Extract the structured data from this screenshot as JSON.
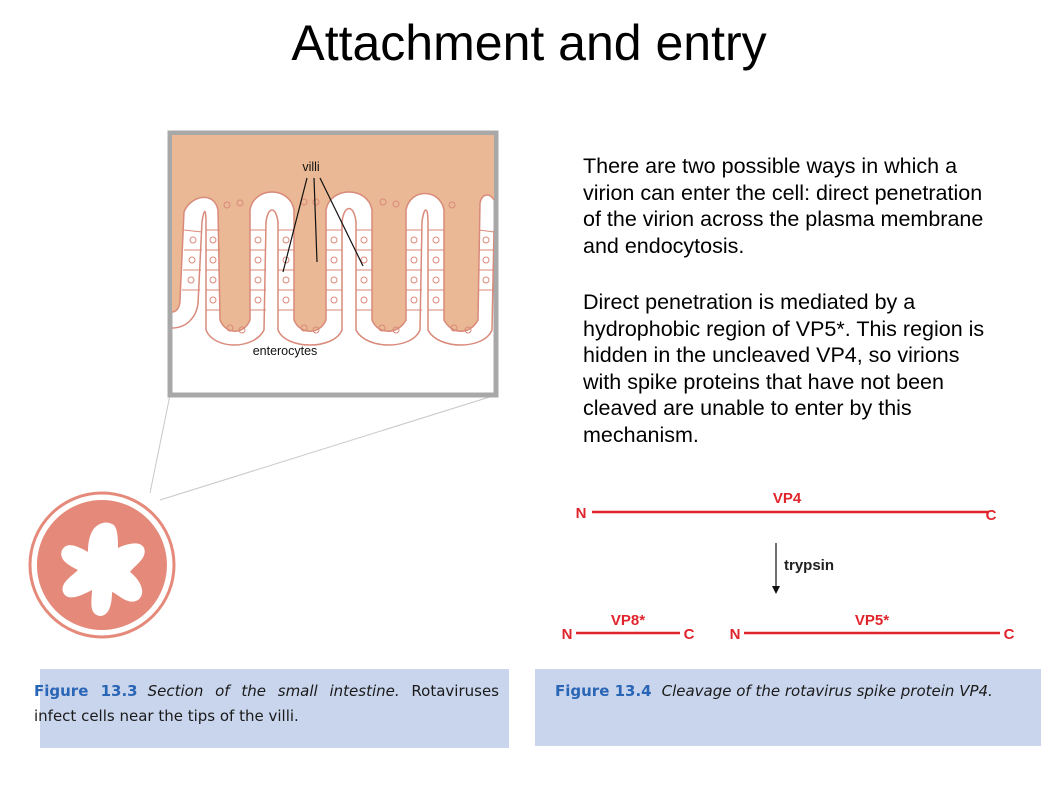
{
  "slide": {
    "title": "Attachment and entry"
  },
  "body": {
    "paragraph1": "There are two possible ways in which a virion can enter the cell: direct penetration of the virion across the plasma membrane and endocytosis.",
    "paragraph2": "Direct penetration is mediated by a hydrophobic region of VP5*. This region is hidden in the uncleaved VP4, so virions with spike proteins that have not been cleaved are unable to enter by this mechanism."
  },
  "figure_13_3": {
    "label_villi": "villi",
    "label_enterocytes": "enterocytes",
    "caption_label": "Figure 13.3",
    "caption_title": "Section of the small intestine.",
    "caption_text": "Rotaviruses infect cells near the tips of the villi."
  },
  "figure_13_4": {
    "vp4_label": "VP4",
    "n_terminus": "N",
    "c_terminus": "C",
    "enzyme_label": "trypsin",
    "vp8_label": "VP8*",
    "vp5_label": "VP5*",
    "caption_label": "Figure 13.4",
    "caption_title": "Cleavage of the rotavirus spike protein VP4."
  },
  "colors": {
    "accent_red": "#e0242c",
    "tissue_tan": "#eab894",
    "circle_red": "#e58a7a",
    "caption_bg": "#c9d5ec",
    "caption_label_blue": "#2a66b6"
  }
}
